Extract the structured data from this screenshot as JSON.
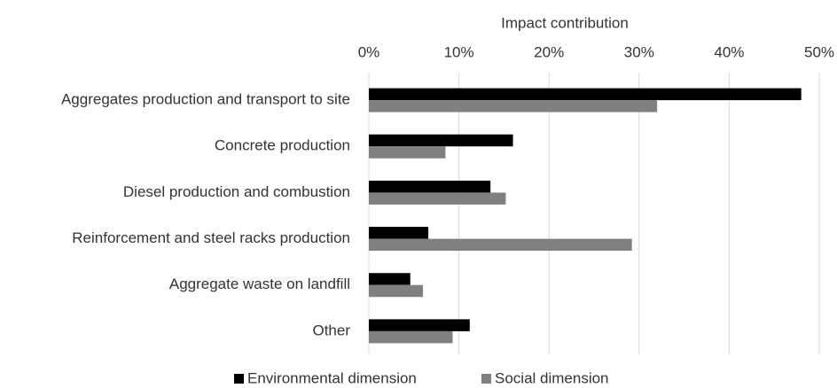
{
  "chart_data": {
    "type": "hbar",
    "x_label": "Impact contribution",
    "categories": [
      "Aggregates production and transport to site",
      "Concrete production",
      "Diesel production and combustion",
      "Reinforcement and steel racks production",
      "Aggregate waste on landfill",
      "Other"
    ],
    "series": [
      {
        "name": "Environmental dimension",
        "color": "#000000",
        "values": [
          48,
          16,
          13.5,
          6.6,
          4.6,
          11.2
        ]
      },
      {
        "name": "Social dimension",
        "color": "#808080",
        "values": [
          32,
          8.5,
          15.2,
          29.2,
          6.0,
          9.3
        ]
      }
    ],
    "xlim": [
      0,
      50
    ],
    "xticks": [
      {
        "value": 0,
        "label": "0%"
      },
      {
        "value": 10,
        "label": "10%"
      },
      {
        "value": 20,
        "label": "20%"
      },
      {
        "value": 30,
        "label": "30%"
      },
      {
        "value": 40,
        "label": "40%"
      },
      {
        "value": 50,
        "label": "50%"
      }
    ],
    "grid": true,
    "legend": "bottom"
  }
}
